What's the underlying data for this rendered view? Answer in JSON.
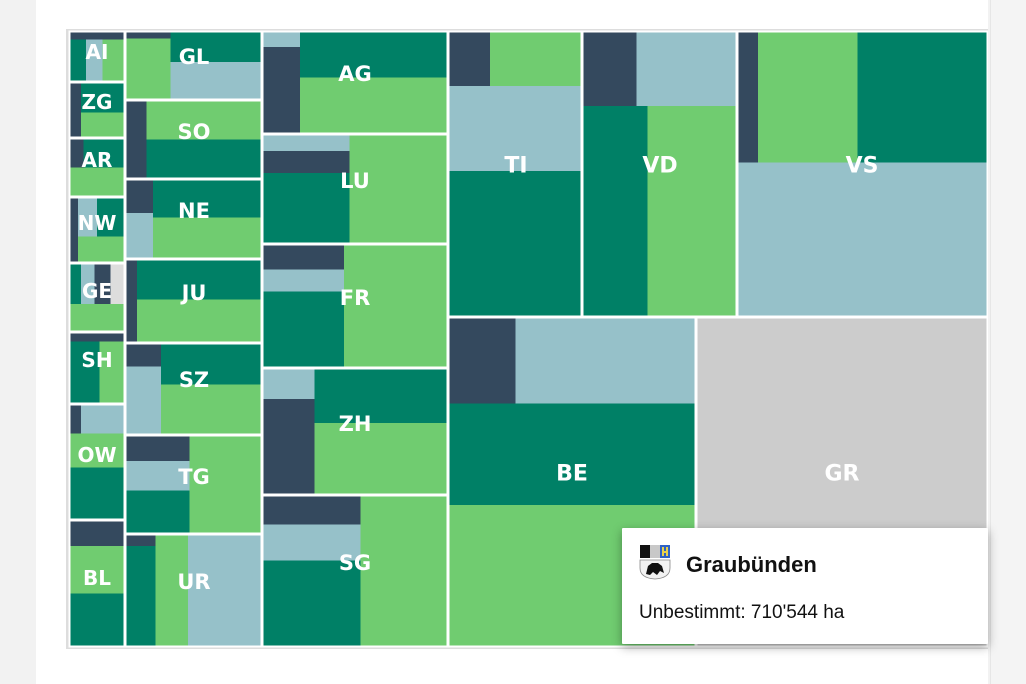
{
  "colors": {
    "dark": "#34495e",
    "teal": "#008066",
    "green": "#70cc70",
    "lightblue": "#96c1c9",
    "grey": "#cccccc",
    "grid": "#dddddd"
  },
  "chart_data": {
    "type": "treemap",
    "categories": [
      "AI",
      "ZG",
      "AR",
      "NW",
      "GE",
      "SH",
      "OW",
      "BL",
      "GL",
      "SO",
      "NE",
      "JU",
      "SZ",
      "TG",
      "UR",
      "AG",
      "LU",
      "FR",
      "ZH",
      "SG",
      "TI",
      "VD",
      "VS",
      "BE",
      "GR"
    ],
    "highlighted": "GR"
  },
  "tooltip": {
    "title": "Graubünden",
    "label": "Unbestimmt",
    "value": "710'544 ha",
    "separator": ": "
  }
}
